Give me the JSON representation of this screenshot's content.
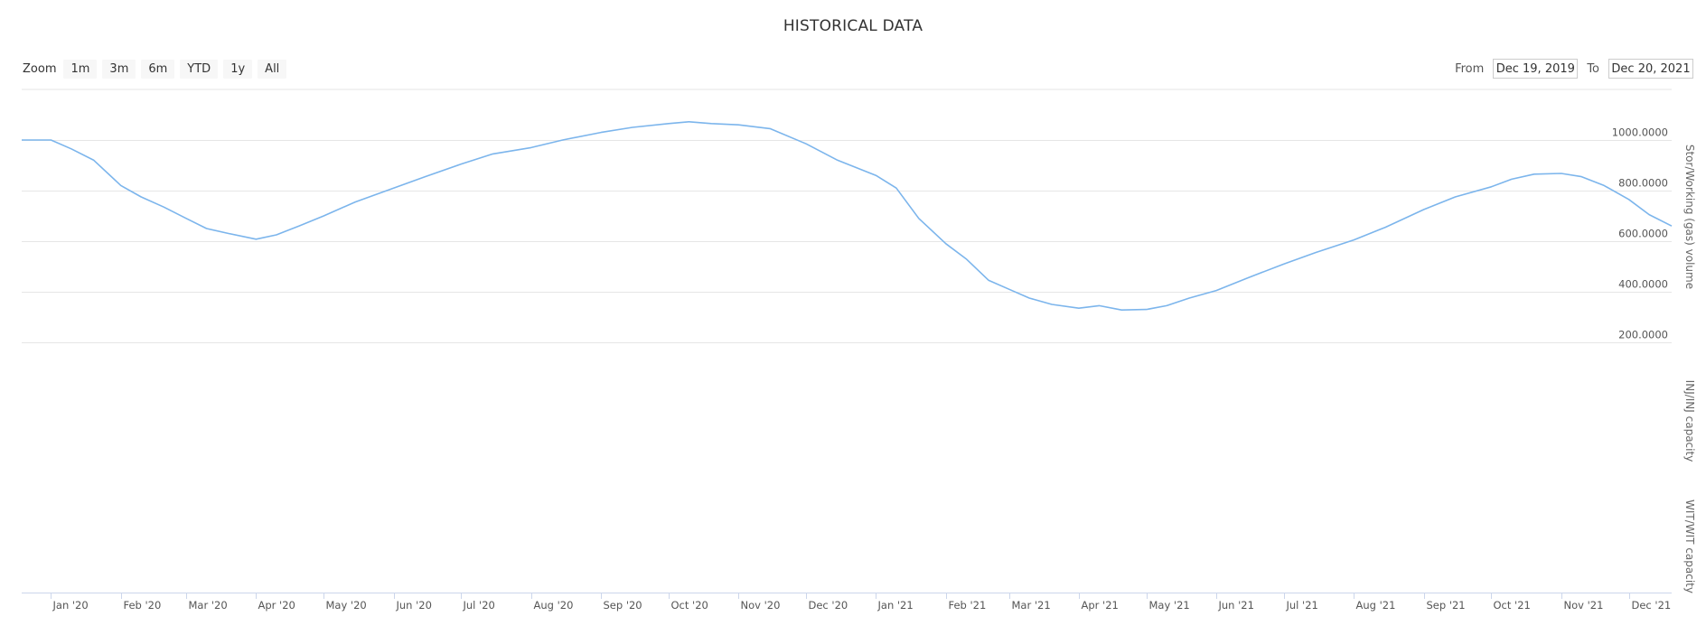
{
  "header": {
    "title": "HISTORICAL DATA"
  },
  "zoom": {
    "label": "Zoom",
    "buttons": [
      "1m",
      "3m",
      "6m",
      "YTD",
      "1y",
      "All"
    ]
  },
  "range": {
    "from_label": "From",
    "from_value": "Dec 19, 2019",
    "to_label": "To",
    "to_value": "Dec 20, 2021"
  },
  "colors": {
    "series": "#7cb5ec",
    "grid": "#e6e6e6",
    "axis": "#ccd6eb"
  },
  "chart_data": {
    "type": "line",
    "title": "HISTORICAL DATA",
    "x_range": [
      "2019-12-19",
      "2021-12-20"
    ],
    "x_ticks": [
      {
        "label": "Jan '20",
        "date": "2020-01-01"
      },
      {
        "label": "Feb '20",
        "date": "2020-02-01"
      },
      {
        "label": "Mar '20",
        "date": "2020-03-01"
      },
      {
        "label": "Apr '20",
        "date": "2020-04-01"
      },
      {
        "label": "May '20",
        "date": "2020-05-01"
      },
      {
        "label": "Jun '20",
        "date": "2020-06-01"
      },
      {
        "label": "Jul '20",
        "date": "2020-07-01"
      },
      {
        "label": "Aug '20",
        "date": "2020-08-01"
      },
      {
        "label": "Sep '20",
        "date": "2020-09-01"
      },
      {
        "label": "Oct '20",
        "date": "2020-10-01"
      },
      {
        "label": "Nov '20",
        "date": "2020-11-01"
      },
      {
        "label": "Dec '20",
        "date": "2020-12-01"
      },
      {
        "label": "Jan '21",
        "date": "2021-01-01"
      },
      {
        "label": "Feb '21",
        "date": "2021-02-01"
      },
      {
        "label": "Mar '21",
        "date": "2021-03-01"
      },
      {
        "label": "Apr '21",
        "date": "2021-04-01"
      },
      {
        "label": "May '21",
        "date": "2021-05-01"
      },
      {
        "label": "Jun '21",
        "date": "2021-06-01"
      },
      {
        "label": "Jul '21",
        "date": "2021-07-01"
      },
      {
        "label": "Aug '21",
        "date": "2021-08-01"
      },
      {
        "label": "Sep '21",
        "date": "2021-09-01"
      },
      {
        "label": "Oct '21",
        "date": "2021-10-01"
      },
      {
        "label": "Nov '21",
        "date": "2021-11-01"
      },
      {
        "label": "Dec '21",
        "date": "2021-12-01"
      }
    ],
    "panes": [
      {
        "ylabel": "Stor/Working (gas) volume",
        "ylim": [
          200,
          1200
        ],
        "y_ticks": [
          {
            "label": "200.0000",
            "value": 200
          },
          {
            "label": "400.0000",
            "value": 400
          },
          {
            "label": "600.0000",
            "value": 600
          },
          {
            "label": "800.0000",
            "value": 800
          },
          {
            "label": "1000.0000",
            "value": 1000
          }
        ],
        "series": [
          {
            "color": "#7cb5ec",
            "points": [
              [
                "2019-12-19",
                1000
              ],
              [
                "2020-01-01",
                1000
              ],
              [
                "2020-01-10",
                965
              ],
              [
                "2020-01-20",
                920
              ],
              [
                "2020-02-01",
                820
              ],
              [
                "2020-02-10",
                775
              ],
              [
                "2020-02-20",
                735
              ],
              [
                "2020-03-01",
                690
              ],
              [
                "2020-03-10",
                650
              ],
              [
                "2020-03-20",
                630
              ],
              [
                "2020-04-01",
                608
              ],
              [
                "2020-04-10",
                625
              ],
              [
                "2020-04-20",
                660
              ],
              [
                "2020-05-01",
                700
              ],
              [
                "2020-05-15",
                755
              ],
              [
                "2020-06-01",
                810
              ],
              [
                "2020-06-15",
                855
              ],
              [
                "2020-07-01",
                905
              ],
              [
                "2020-07-15",
                945
              ],
              [
                "2020-08-01",
                970
              ],
              [
                "2020-08-15",
                1000
              ],
              [
                "2020-09-01",
                1030
              ],
              [
                "2020-09-15",
                1050
              ],
              [
                "2020-10-01",
                1065
              ],
              [
                "2020-10-10",
                1072
              ],
              [
                "2020-10-20",
                1065
              ],
              [
                "2020-11-01",
                1060
              ],
              [
                "2020-11-15",
                1045
              ],
              [
                "2020-12-01",
                985
              ],
              [
                "2020-12-15",
                920
              ],
              [
                "2021-01-01",
                860
              ],
              [
                "2021-01-10",
                810
              ],
              [
                "2021-01-20",
                690
              ],
              [
                "2021-02-01",
                590
              ],
              [
                "2021-02-10",
                530
              ],
              [
                "2021-02-20",
                445
              ],
              [
                "2021-03-01",
                410
              ],
              [
                "2021-03-10",
                375
              ],
              [
                "2021-03-20",
                350
              ],
              [
                "2021-04-01",
                335
              ],
              [
                "2021-04-10",
                345
              ],
              [
                "2021-04-20",
                328
              ],
              [
                "2021-05-01",
                330
              ],
              [
                "2021-05-10",
                345
              ],
              [
                "2021-05-20",
                375
              ],
              [
                "2021-06-01",
                405
              ],
              [
                "2021-06-15",
                455
              ],
              [
                "2021-07-01",
                510
              ],
              [
                "2021-07-15",
                555
              ],
              [
                "2021-08-01",
                605
              ],
              [
                "2021-08-15",
                655
              ],
              [
                "2021-09-01",
                725
              ],
              [
                "2021-09-15",
                775
              ],
              [
                "2021-10-01",
                815
              ],
              [
                "2021-10-10",
                845
              ],
              [
                "2021-10-20",
                865
              ],
              [
                "2021-11-01",
                868
              ],
              [
                "2021-11-10",
                855
              ],
              [
                "2021-11-20",
                820
              ],
              [
                "2021-12-01",
                765
              ],
              [
                "2021-12-10",
                705
              ],
              [
                "2021-12-20",
                660
              ]
            ]
          }
        ]
      },
      {
        "ylabel": "INJ/INJ capacity",
        "series": []
      },
      {
        "ylabel": "WIT/WIT capacity",
        "series": []
      }
    ]
  }
}
